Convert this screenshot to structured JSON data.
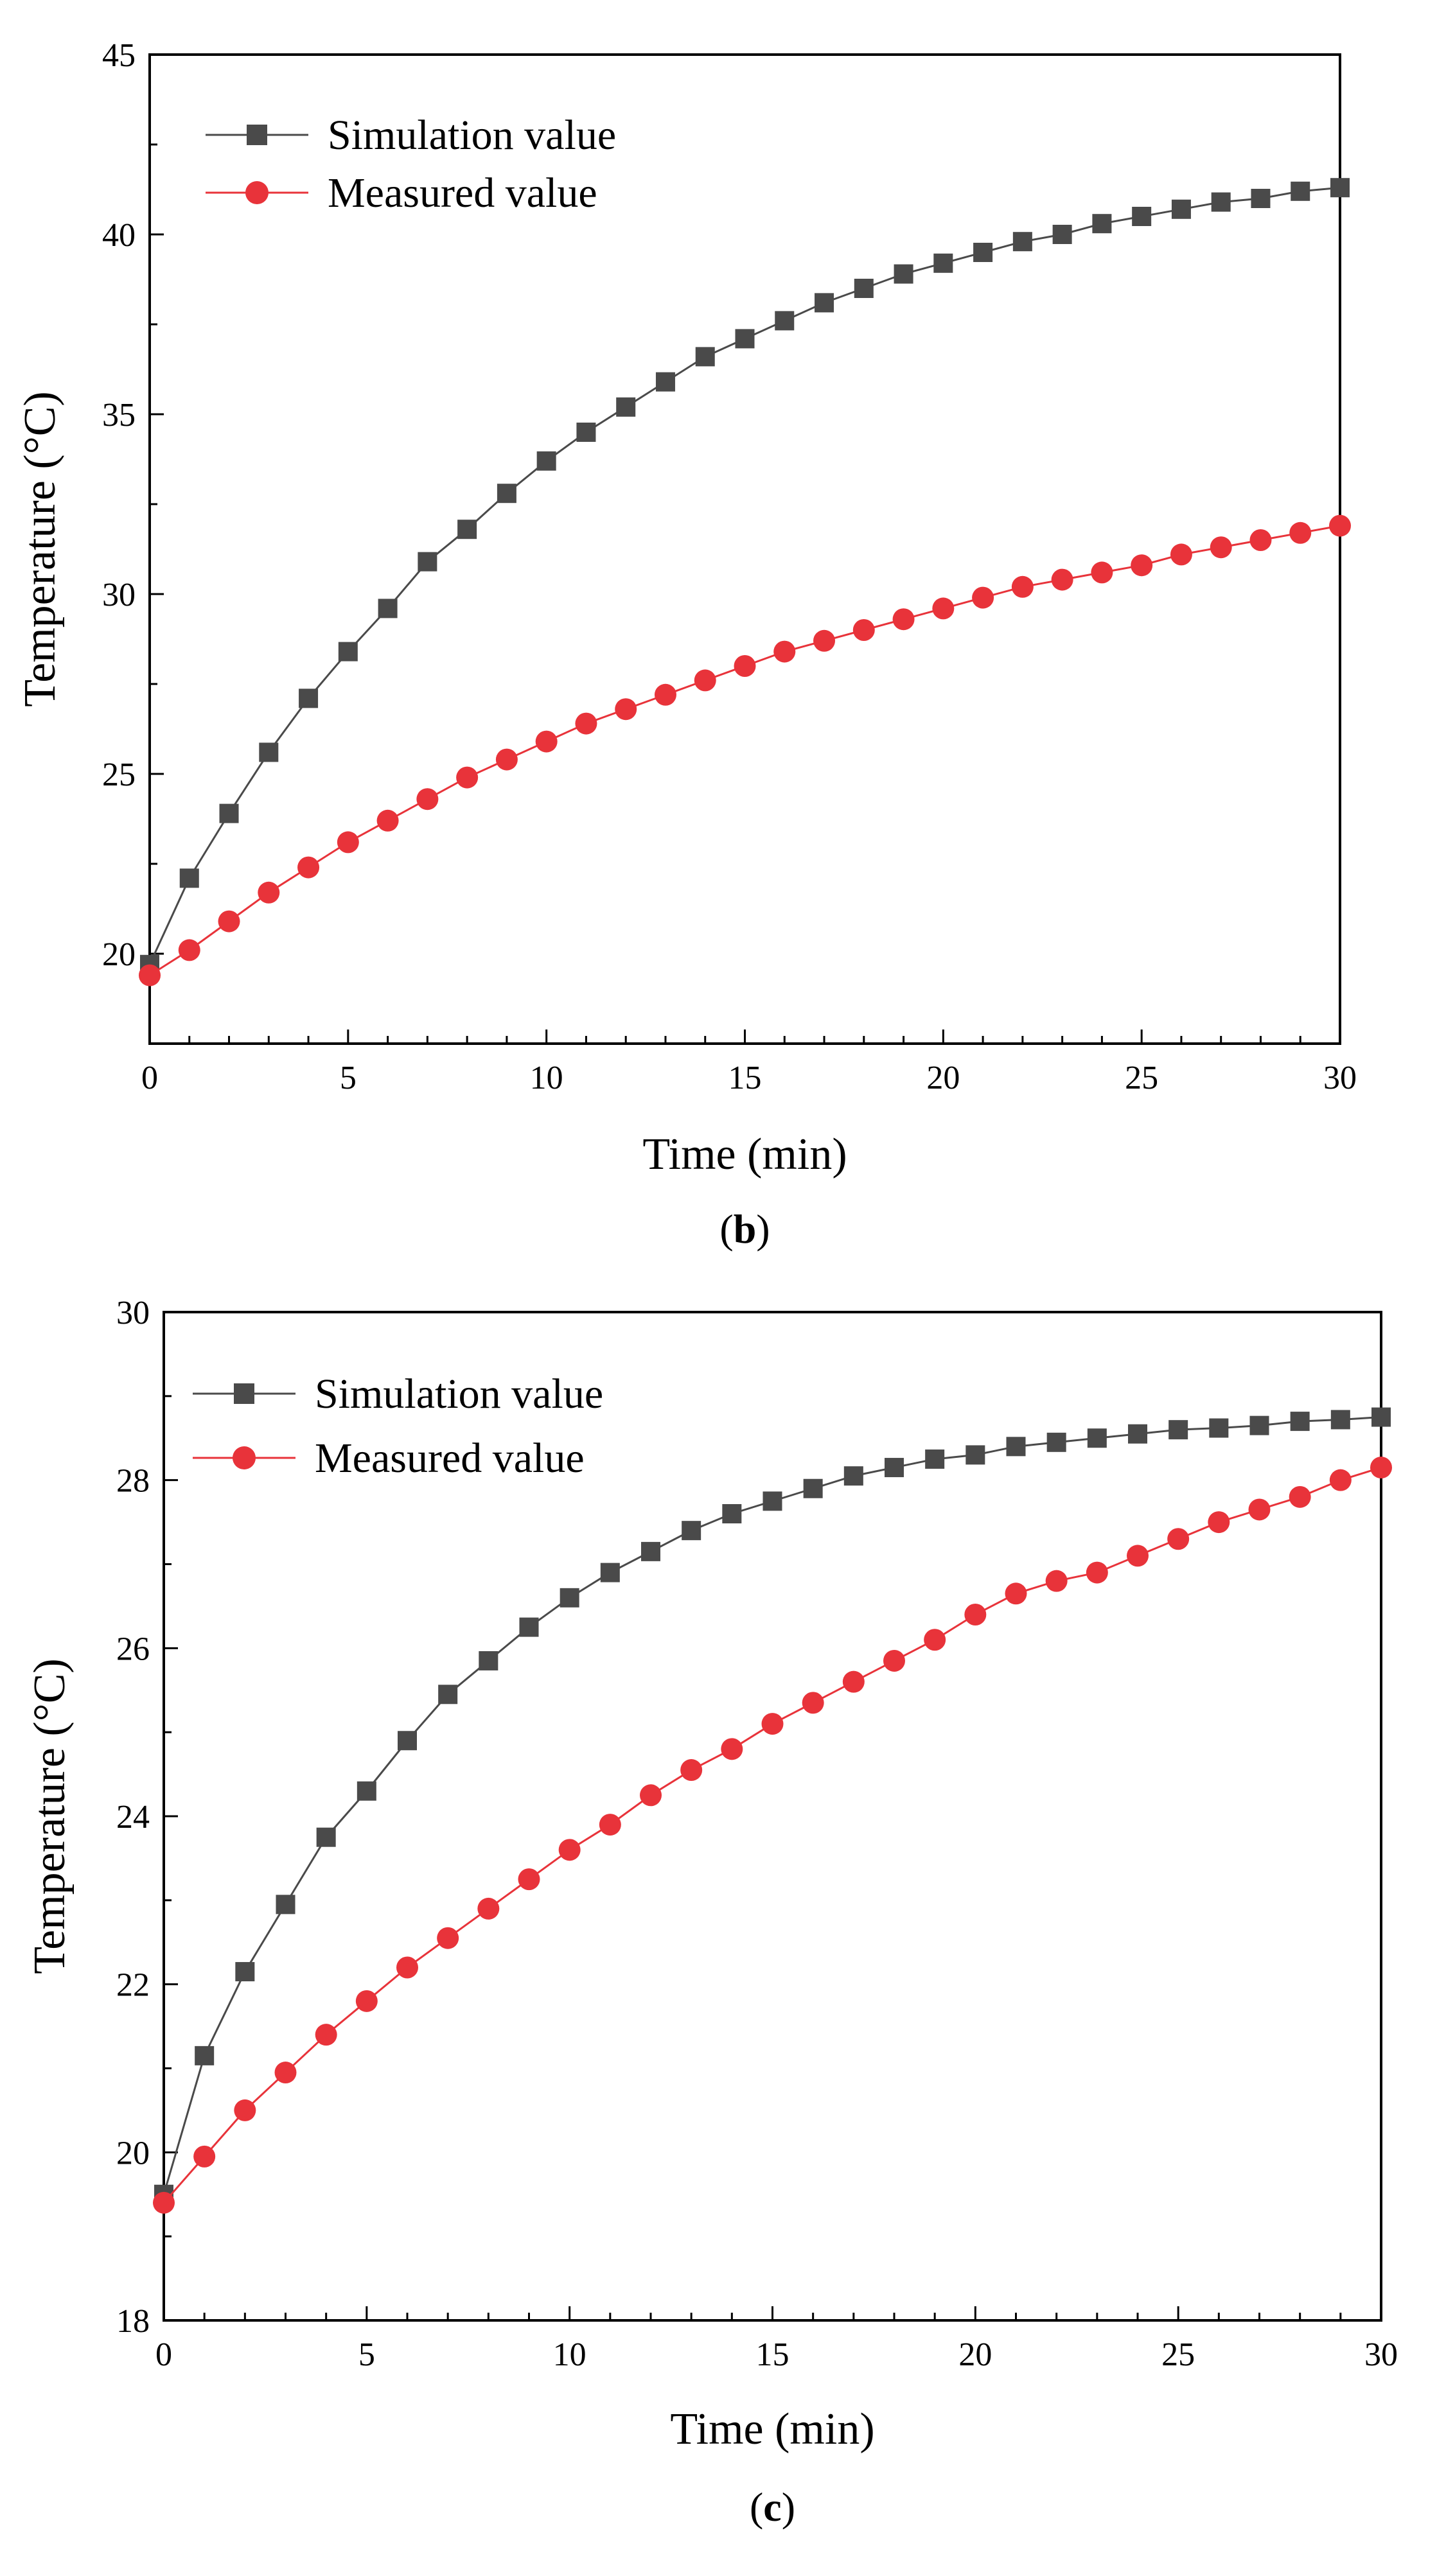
{
  "colors": {
    "simulation": "#4a4a4a",
    "measured": "#e8333a",
    "axis": "#000000"
  },
  "chart_data": [
    {
      "type": "line",
      "panel": "b",
      "caption_open": "(",
      "caption_letter": "b",
      "caption_close": ")",
      "xlabel": "Time (min)",
      "ylabel": "Temperature (°C)",
      "xlim": [
        0,
        30
      ],
      "ylim": [
        17.5,
        45
      ],
      "xticks": [
        0,
        5,
        10,
        15,
        20,
        25,
        30
      ],
      "yticks": [
        20,
        25,
        30,
        35,
        40,
        45
      ],
      "legend_position": "top-left",
      "x": [
        0,
        1,
        2,
        3,
        4,
        5,
        6,
        7,
        8,
        9,
        10,
        11,
        12,
        13,
        14,
        15,
        16,
        17,
        18,
        19,
        20,
        21,
        22,
        23,
        24,
        25,
        26,
        27,
        28,
        29,
        30
      ],
      "series": [
        {
          "name": "Simulation value",
          "marker": "square",
          "values": [
            19.7,
            22.1,
            23.9,
            25.6,
            27.1,
            28.4,
            29.6,
            30.9,
            31.8,
            32.8,
            33.7,
            34.5,
            35.2,
            35.9,
            36.6,
            37.1,
            37.6,
            38.1,
            38.5,
            38.9,
            39.2,
            39.5,
            39.8,
            40.0,
            40.3,
            40.5,
            40.7,
            40.9,
            41.0,
            41.2,
            41.3
          ]
        },
        {
          "name": "Measured value",
          "marker": "circle",
          "values": [
            19.4,
            20.1,
            20.9,
            21.7,
            22.4,
            23.1,
            23.7,
            24.3,
            24.9,
            25.4,
            25.9,
            26.4,
            26.8,
            27.2,
            27.6,
            28.0,
            28.4,
            28.7,
            29.0,
            29.3,
            29.6,
            29.9,
            30.2,
            30.4,
            30.6,
            30.8,
            31.1,
            31.3,
            31.5,
            31.7,
            31.9
          ]
        }
      ]
    },
    {
      "type": "line",
      "panel": "c",
      "caption_open": "(",
      "caption_letter": "c",
      "caption_close": ")",
      "xlabel": "Time (min)",
      "ylabel": "Temperature (°C)",
      "xlim": [
        0,
        30
      ],
      "ylim": [
        18,
        30
      ],
      "xticks": [
        0,
        5,
        10,
        15,
        20,
        25,
        30
      ],
      "yticks": [
        18,
        20,
        22,
        24,
        26,
        28,
        30
      ],
      "legend_position": "top-left",
      "x": [
        0,
        1,
        2,
        3,
        4,
        5,
        6,
        7,
        8,
        9,
        10,
        11,
        12,
        13,
        14,
        15,
        16,
        17,
        18,
        19,
        20,
        21,
        22,
        23,
        24,
        25,
        26,
        27,
        28,
        29,
        30
      ],
      "series": [
        {
          "name": "Simulation value",
          "marker": "square",
          "values": [
            19.5,
            21.15,
            22.15,
            22.95,
            23.75,
            24.3,
            24.9,
            25.45,
            25.85,
            26.25,
            26.6,
            26.9,
            27.15,
            27.4,
            27.6,
            27.75,
            27.9,
            28.05,
            28.15,
            28.25,
            28.3,
            28.4,
            28.45,
            28.5,
            28.55,
            28.6,
            28.62,
            28.65,
            28.7,
            28.72,
            28.75
          ]
        },
        {
          "name": "Measured value",
          "marker": "circle",
          "values": [
            19.4,
            19.95,
            20.5,
            20.95,
            21.4,
            21.8,
            22.2,
            22.55,
            22.9,
            23.25,
            23.6,
            23.9,
            24.25,
            24.55,
            24.8,
            25.1,
            25.35,
            25.6,
            25.85,
            26.1,
            26.4,
            26.65,
            26.8,
            26.9,
            27.1,
            27.3,
            27.5,
            27.65,
            27.8,
            28.0,
            28.15
          ]
        }
      ]
    }
  ]
}
